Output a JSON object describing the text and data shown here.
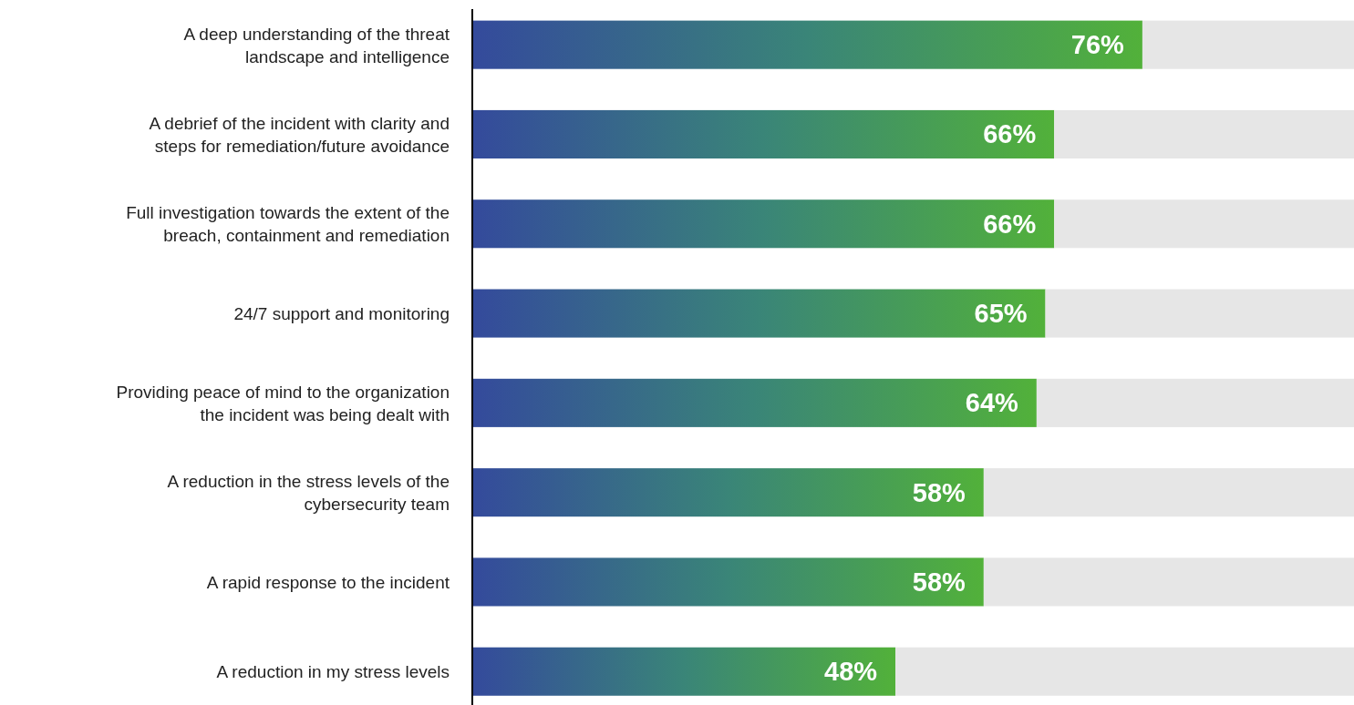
{
  "chart_data": {
    "type": "bar",
    "orientation": "horizontal",
    "stacked": true,
    "tick_labels": "y",
    "xlim": [
      0,
      100
    ],
    "categories": [
      "A deep understanding of the threat\nlandscape and intelligence",
      "A debrief of the incident with clarity and\nsteps for remediation/future avoidance",
      "Full investigation towards the extent of the\nbreach, containment and remediation",
      "24/7 support and monitoring",
      "Providing peace of mind to the organization\nthe incident was being dealt with",
      "A reduction in the stress levels of the\ncybersecurity team",
      "A rapid response to the incident",
      "A reduction in my stress levels"
    ],
    "series": [
      {
        "color": "#3a8578",
        "values": [
          76,
          66,
          66,
          65,
          64,
          58,
          58,
          48
        ],
        "value_labels": [
          "76%",
          "66%",
          "66%",
          "65%",
          "64%",
          "58%",
          "58%",
          "48%"
        ]
      },
      {
        "color": "#e6e6e6",
        "values": [
          24,
          34,
          34,
          35,
          36,
          42,
          42,
          52
        ]
      }
    ]
  }
}
